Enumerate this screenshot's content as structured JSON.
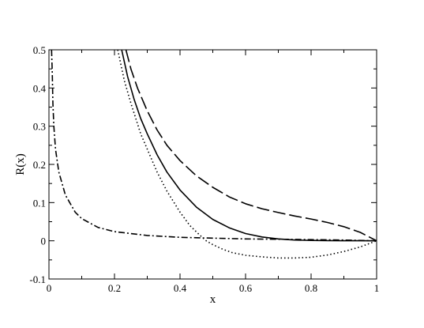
{
  "chart_data": {
    "type": "line",
    "title": "",
    "xlabel": "x",
    "ylabel": "R(x)",
    "xlim": [
      0,
      1
    ],
    "ylim": [
      -0.1,
      0.5
    ],
    "xticks": [
      0,
      0.2,
      0.4,
      0.6,
      0.8,
      1
    ],
    "xtick_labels": [
      "0",
      "0.2",
      "0.4",
      "0.6",
      "0.8",
      "1"
    ],
    "yticks": [
      -0.1,
      0,
      0.1,
      0.2,
      0.3,
      0.4,
      0.5
    ],
    "ytick_labels": [
      "-0.1",
      "0",
      "0.1",
      "0.2",
      "0.3",
      "0.4",
      "0.5"
    ],
    "grid": false,
    "legend": "none",
    "series": [
      {
        "style": "solid",
        "color": "#000000",
        "x": [
          0.222,
          0.24,
          0.26,
          0.28,
          0.3,
          0.33,
          0.36,
          0.4,
          0.45,
          0.5,
          0.55,
          0.6,
          0.65,
          0.7,
          0.75,
          0.8,
          0.85,
          0.9,
          0.95,
          1.0
        ],
        "y": [
          0.5,
          0.43,
          0.37,
          0.32,
          0.28,
          0.225,
          0.18,
          0.133,
          0.088,
          0.056,
          0.034,
          0.019,
          0.01,
          0.005,
          0.002,
          0.001,
          0.0005,
          0.0002,
          0.0001,
          0.0
        ]
      },
      {
        "style": "dashed",
        "color": "#000000",
        "x": [
          0.235,
          0.25,
          0.27,
          0.3,
          0.33,
          0.36,
          0.4,
          0.45,
          0.5,
          0.55,
          0.6,
          0.65,
          0.7,
          0.75,
          0.8,
          0.85,
          0.9,
          0.95,
          1.0
        ],
        "y": [
          0.5,
          0.45,
          0.4,
          0.34,
          0.29,
          0.25,
          0.21,
          0.17,
          0.14,
          0.115,
          0.097,
          0.084,
          0.074,
          0.065,
          0.057,
          0.048,
          0.037,
          0.022,
          0.0
        ]
      },
      {
        "style": "dotted",
        "color": "#000000",
        "x": [
          0.21,
          0.23,
          0.25,
          0.28,
          0.3,
          0.33,
          0.36,
          0.4,
          0.43,
          0.46,
          0.48,
          0.5,
          0.53,
          0.56,
          0.6,
          0.65,
          0.7,
          0.75,
          0.8,
          0.85,
          0.9,
          0.95,
          1.0
        ],
        "y": [
          0.5,
          0.42,
          0.36,
          0.28,
          0.24,
          0.18,
          0.13,
          0.075,
          0.04,
          0.015,
          0.0,
          -0.01,
          -0.022,
          -0.031,
          -0.038,
          -0.042,
          -0.045,
          -0.045,
          -0.043,
          -0.037,
          -0.028,
          -0.016,
          0.0
        ]
      },
      {
        "style": "dash-dot",
        "color": "#000000",
        "x": [
          0.008,
          0.01,
          0.012,
          0.015,
          0.02,
          0.03,
          0.05,
          0.08,
          0.1,
          0.15,
          0.2,
          0.3,
          0.4,
          0.5,
          0.6,
          0.7,
          0.8,
          0.9,
          1.0
        ],
        "y": [
          0.5,
          0.44,
          0.36,
          0.3,
          0.24,
          0.18,
          0.12,
          0.075,
          0.058,
          0.035,
          0.024,
          0.014,
          0.009,
          0.007,
          0.005,
          0.004,
          0.003,
          0.002,
          0.0
        ]
      }
    ]
  }
}
